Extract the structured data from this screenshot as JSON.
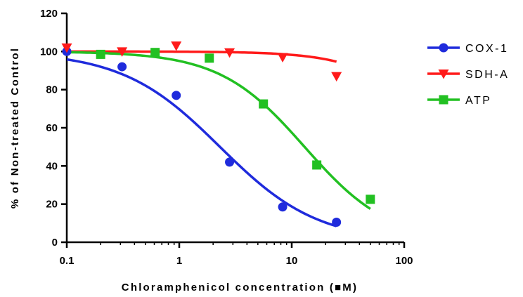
{
  "chart_data": {
    "type": "scatter",
    "title": "",
    "xlabel": "Chloramphenicol concentration (",
    "xlabel_unit_suffix": "M)",
    "xlabel_mu_glyph": "■",
    "ylabel": "% of Non-treated Control",
    "x_scale": "log",
    "xlim": [
      0.1,
      100
    ],
    "ylim": [
      0,
      120
    ],
    "x_ticks": [
      0.1,
      1,
      10,
      100
    ],
    "x_tick_labels": [
      "0.1",
      "1",
      "10",
      "100"
    ],
    "y_ticks": [
      0,
      20,
      40,
      60,
      80,
      100,
      120
    ],
    "y_tick_labels": [
      "0",
      "20",
      "40",
      "60",
      "80",
      "100",
      "120"
    ],
    "grid": false,
    "legend_position": "right",
    "series": [
      {
        "name": "COX-1",
        "color": "#1f2bdc",
        "marker": "circle",
        "points": [
          {
            "x": 0.1,
            "y": 100
          },
          {
            "x": 0.31,
            "y": 92
          },
          {
            "x": 0.94,
            "y": 77
          },
          {
            "x": 2.8,
            "y": 42
          },
          {
            "x": 8.3,
            "y": 18.5
          },
          {
            "x": 25,
            "y": 10.5
          }
        ],
        "fit": {
          "top": 100,
          "bottom": 0,
          "ec50": 2.3,
          "hill": 1.0,
          "x_range": [
            0.1,
            25
          ]
        }
      },
      {
        "name": "SDH-A",
        "color": "#ff1a1a",
        "marker": "triangle-down",
        "points": [
          {
            "x": 0.1,
            "y": 102
          },
          {
            "x": 0.31,
            "y": 100
          },
          {
            "x": 0.94,
            "y": 103
          },
          {
            "x": 2.8,
            "y": 99.5
          },
          {
            "x": 8.3,
            "y": 97
          },
          {
            "x": 25,
            "y": 87
          }
        ],
        "fit": {
          "top": 100,
          "bottom": 0,
          "ec50": 250,
          "hill": 1.25,
          "x_range": [
            0.1,
            25
          ]
        }
      },
      {
        "name": "ATP",
        "color": "#22c022",
        "marker": "square",
        "points": [
          {
            "x": 0.2,
            "y": 98.5
          },
          {
            "x": 0.61,
            "y": 99.5
          },
          {
            "x": 1.85,
            "y": 96.5
          },
          {
            "x": 5.6,
            "y": 72.5
          },
          {
            "x": 16.7,
            "y": 40.5
          },
          {
            "x": 50,
            "y": 22.5
          }
        ],
        "fit": {
          "top": 100,
          "bottom": 0,
          "ec50": 13,
          "hill": 1.15,
          "x_range": [
            0.1,
            50
          ]
        }
      }
    ]
  }
}
